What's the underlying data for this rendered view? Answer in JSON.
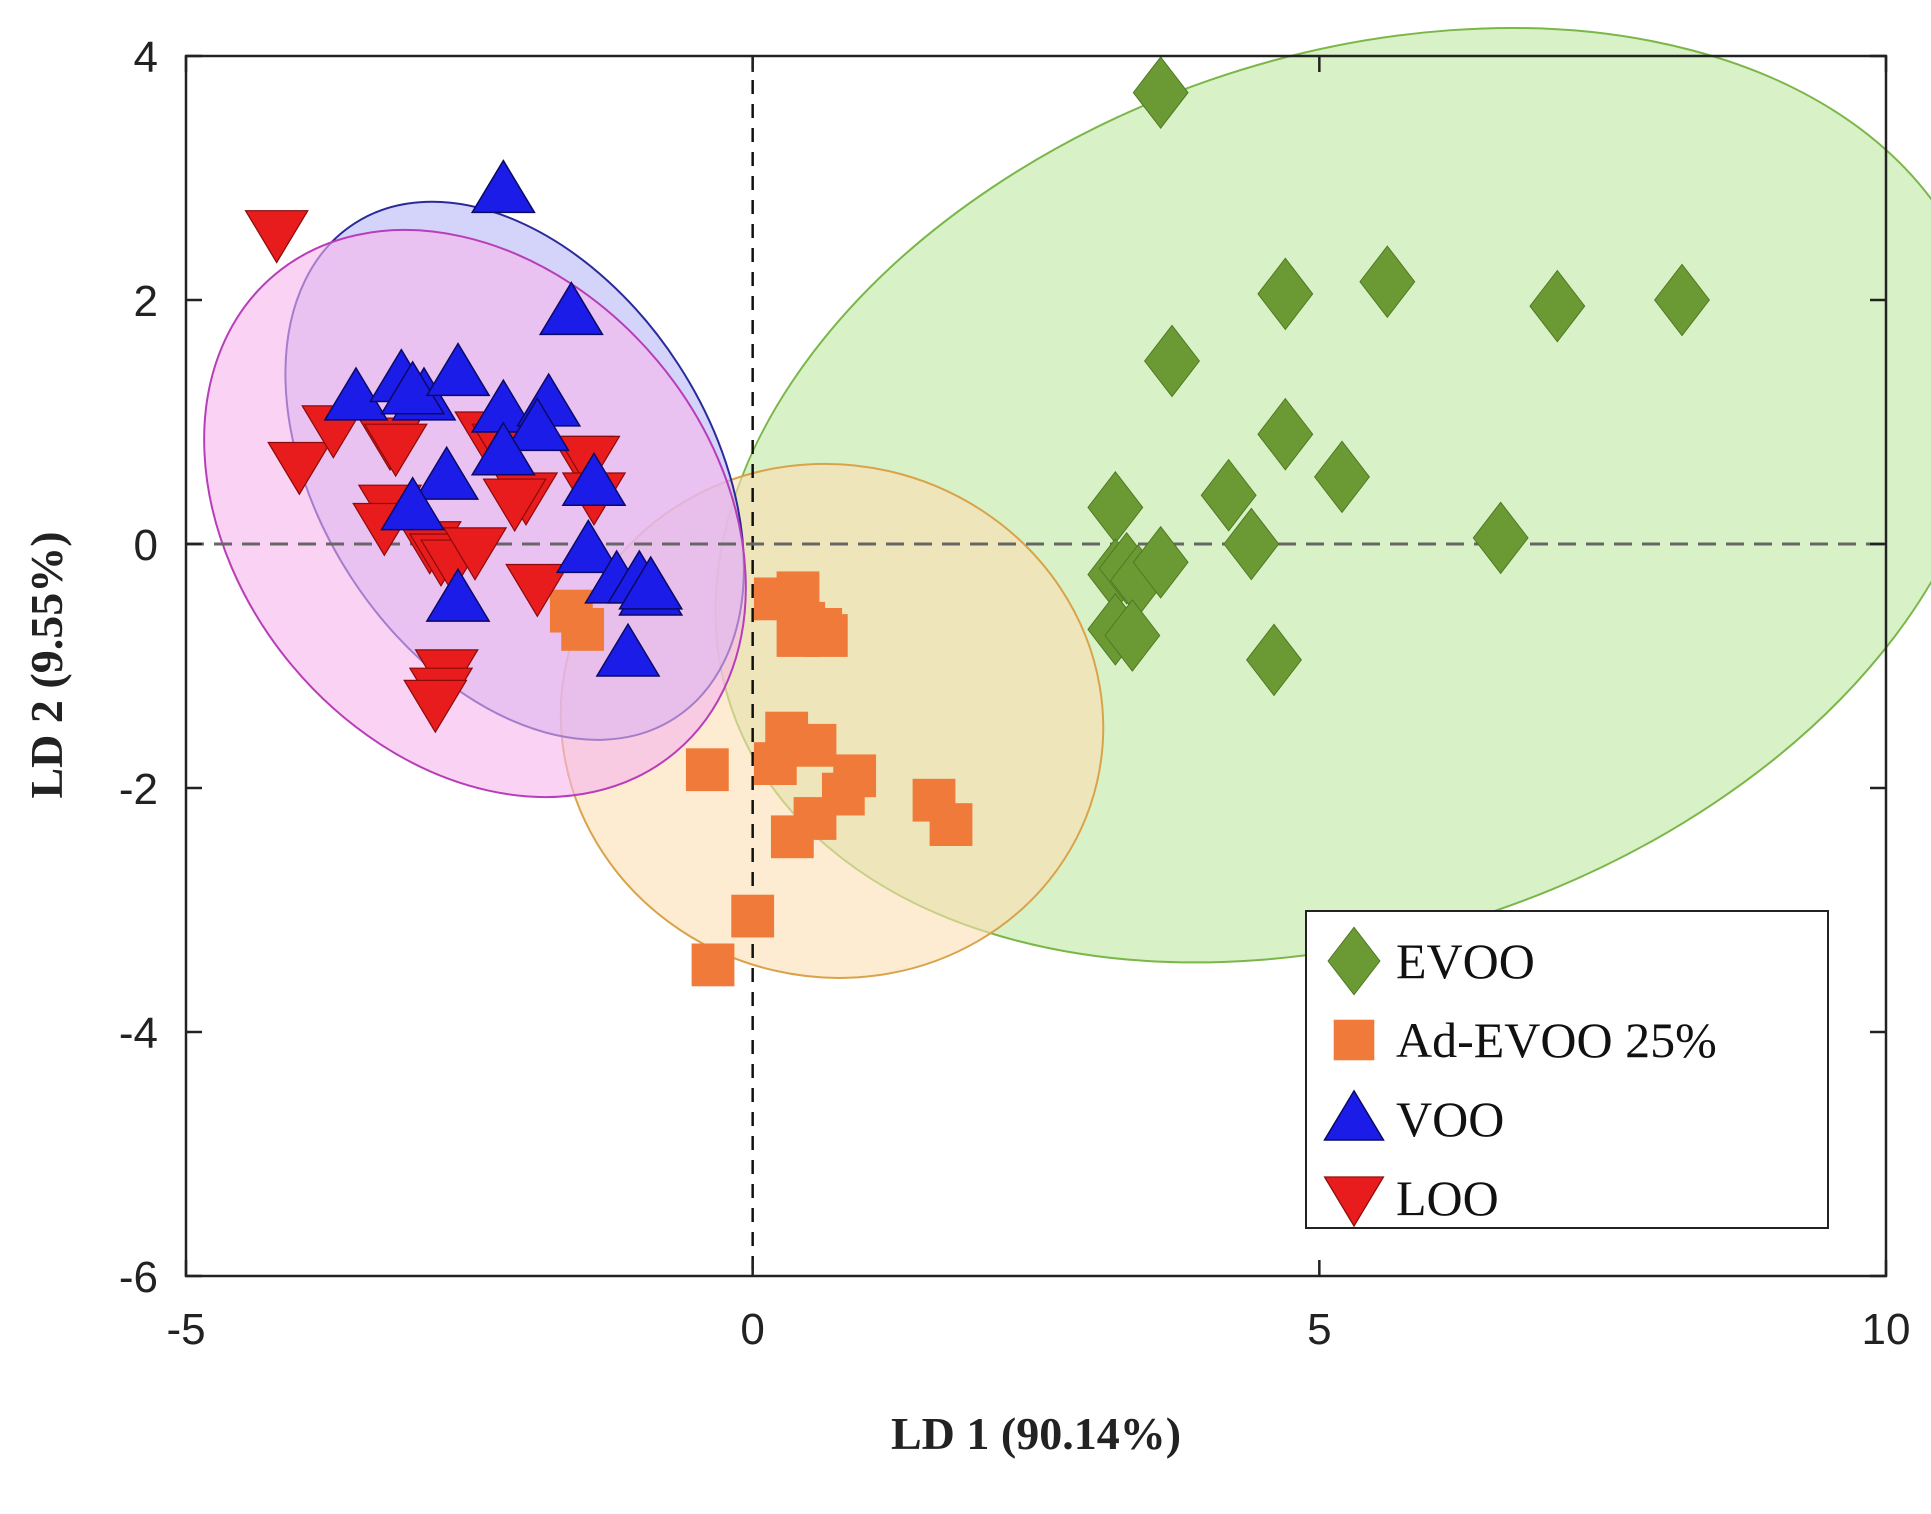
{
  "chart_data": {
    "type": "scatter",
    "title": "",
    "xlabel": "LD 1 (90.14%)",
    "ylabel": "LD 2 (9.55%)",
    "xlim": [
      -5,
      10
    ],
    "ylim": [
      -6,
      4
    ],
    "xticks": [
      -5,
      0,
      5,
      10
    ],
    "yticks": [
      -6,
      -4,
      -2,
      0,
      2,
      4
    ],
    "xtick_labels": [
      "-5",
      "0",
      "5",
      "10"
    ],
    "ytick_labels": [
      "-6",
      "-4",
      "-2",
      "0",
      "2",
      "4"
    ],
    "reference_lines": {
      "x": 0,
      "y": 0
    },
    "grid": false,
    "legend_position": "bottom-right",
    "series": [
      {
        "name": "EVOO",
        "marker": "diamond",
        "color": "#6b9a35",
        "ellipse": {
          "cx": 5.3,
          "cy": 0.4,
          "rx": 5.8,
          "ry": 3.6,
          "angle_deg": 19,
          "fill": "#bfe8a0",
          "stroke": "#7ab648"
        },
        "points": [
          [
            3.6,
            3.7
          ],
          [
            5.6,
            2.15
          ],
          [
            4.7,
            2.05
          ],
          [
            7.1,
            1.95
          ],
          [
            8.2,
            2.0
          ],
          [
            3.7,
            1.5
          ],
          [
            4.7,
            0.9
          ],
          [
            5.2,
            0.55
          ],
          [
            3.2,
            0.3
          ],
          [
            4.2,
            0.4
          ],
          [
            6.6,
            0.05
          ],
          [
            4.4,
            0.0
          ],
          [
            3.2,
            -0.25
          ],
          [
            3.3,
            -0.2
          ],
          [
            3.4,
            -0.3
          ],
          [
            3.6,
            -0.15
          ],
          [
            3.2,
            -0.7
          ],
          [
            3.35,
            -0.75
          ],
          [
            4.6,
            -0.95
          ]
        ]
      },
      {
        "name": "Ad-EVOO 25%",
        "marker": "square",
        "color": "#f07a3a",
        "ellipse": {
          "cx": 0.7,
          "cy": -1.45,
          "rx": 2.4,
          "ry": 2.1,
          "angle_deg": -13,
          "fill": "#fbe0b2",
          "stroke": "#d9a34b"
        },
        "points": [
          [
            -1.6,
            -0.55
          ],
          [
            -1.5,
            -0.7
          ],
          [
            0.2,
            -0.45
          ],
          [
            0.4,
            -0.4
          ],
          [
            0.45,
            -0.65
          ],
          [
            0.4,
            -0.75
          ],
          [
            0.6,
            -0.7
          ],
          [
            0.65,
            -0.75
          ],
          [
            0.3,
            -1.55
          ],
          [
            0.55,
            -1.65
          ],
          [
            0.2,
            -1.8
          ],
          [
            0.9,
            -1.9
          ],
          [
            0.8,
            -2.05
          ],
          [
            1.6,
            -2.1
          ],
          [
            1.75,
            -2.3
          ],
          [
            0.55,
            -2.25
          ],
          [
            0.35,
            -2.4
          ],
          [
            -0.4,
            -1.85
          ],
          [
            0.0,
            -3.05
          ],
          [
            -0.35,
            -3.45
          ]
        ]
      },
      {
        "name": "VOO",
        "marker": "triangle-up",
        "color": "#1c1ce8",
        "ellipse": {
          "cx": -2.1,
          "cy": 0.6,
          "rx": 2.6,
          "ry": 1.6,
          "angle_deg": -57,
          "fill": "#b8b8f8",
          "stroke": "#2a2a9a"
        },
        "points": [
          [
            -2.2,
            2.9
          ],
          [
            -1.6,
            1.9
          ],
          [
            -3.5,
            1.2
          ],
          [
            -3.1,
            1.35
          ],
          [
            -2.9,
            1.2
          ],
          [
            -3.0,
            1.25
          ],
          [
            -2.6,
            1.4
          ],
          [
            -2.2,
            1.1
          ],
          [
            -1.8,
            1.15
          ],
          [
            -1.9,
            0.95
          ],
          [
            -2.2,
            0.75
          ],
          [
            -2.7,
            0.55
          ],
          [
            -3.0,
            0.3
          ],
          [
            -1.4,
            0.5
          ],
          [
            -1.45,
            -0.05
          ],
          [
            -1.2,
            -0.3
          ],
          [
            -1.0,
            -0.3
          ],
          [
            -0.9,
            -0.4
          ],
          [
            -0.9,
            -0.35
          ],
          [
            -2.6,
            -0.45
          ],
          [
            -1.1,
            -0.9
          ]
        ]
      },
      {
        "name": "LOO",
        "marker": "triangle-down",
        "color": "#e81c1c",
        "ellipse": {
          "cx": -2.45,
          "cy": 0.25,
          "rx": 2.75,
          "ry": 1.95,
          "angle_deg": -50,
          "fill": "#f7b6ec",
          "stroke": "#b83db8"
        },
        "points": [
          [
            -4.2,
            2.55
          ],
          [
            -4.0,
            0.65
          ],
          [
            -3.7,
            0.95
          ],
          [
            -3.2,
            0.85
          ],
          [
            -3.15,
            0.8
          ],
          [
            -2.35,
            0.9
          ],
          [
            -2.2,
            0.8
          ],
          [
            -1.5,
            0.7
          ],
          [
            -1.45,
            0.7
          ],
          [
            -1.4,
            0.4
          ],
          [
            -2.0,
            0.4
          ],
          [
            -2.1,
            0.35
          ],
          [
            -3.2,
            0.3
          ],
          [
            -3.25,
            0.15
          ],
          [
            -2.85,
            0.0
          ],
          [
            -2.75,
            -0.1
          ],
          [
            -2.65,
            -0.15
          ],
          [
            -2.45,
            -0.05
          ],
          [
            -1.9,
            -0.35
          ],
          [
            -2.7,
            -1.05
          ],
          [
            -2.75,
            -1.2
          ],
          [
            -2.8,
            -1.3
          ]
        ]
      }
    ]
  }
}
